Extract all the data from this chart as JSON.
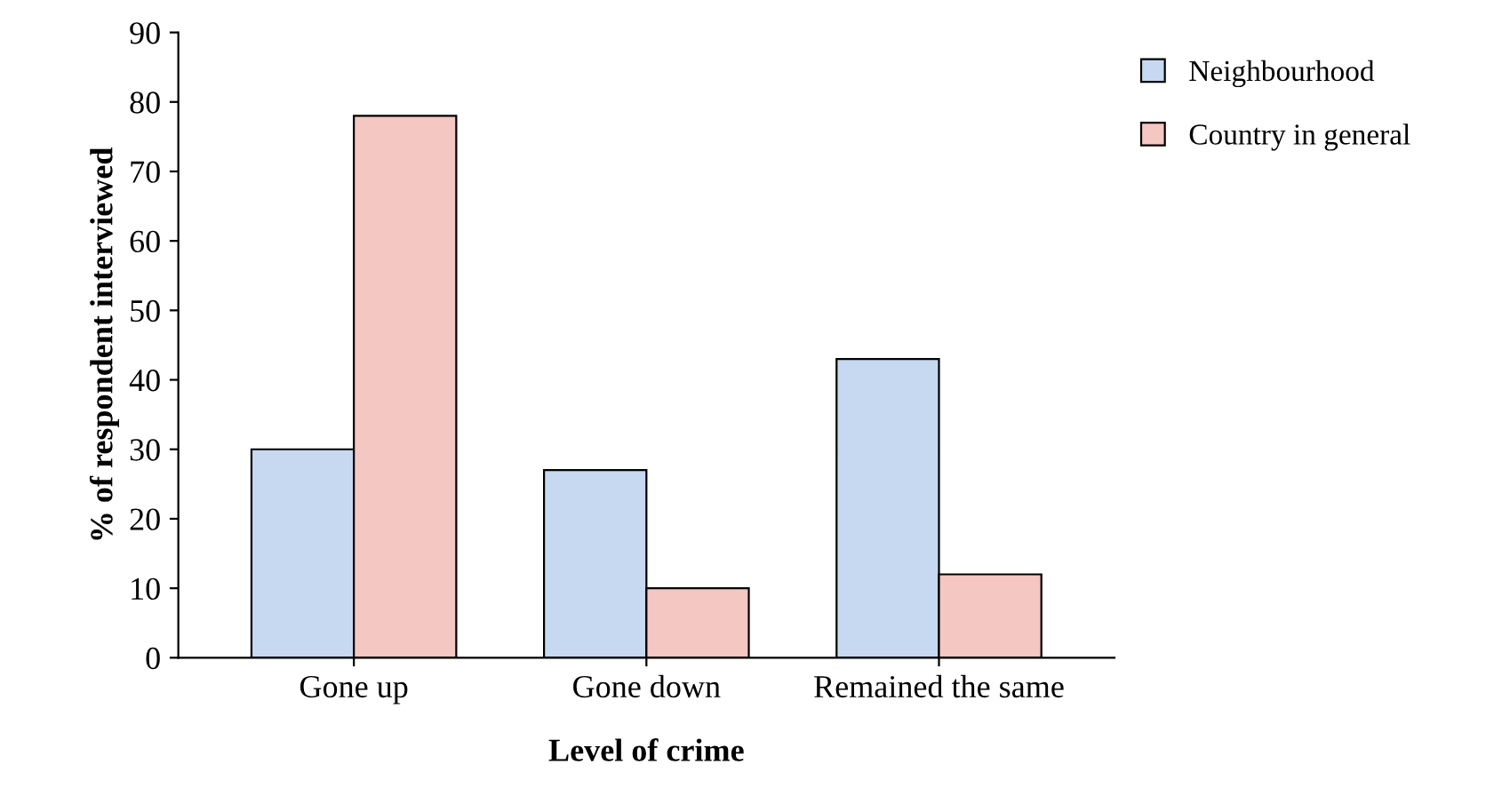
{
  "chart_data": {
    "type": "bar",
    "xlabel": "Level of crime",
    "ylabel": "% of respondent interviewed",
    "categories": [
      "Gone up",
      "Gone down",
      "Remained the same"
    ],
    "series": [
      {
        "name": "Neighbourhood",
        "color": "#c6d9f1",
        "values": [
          30,
          27,
          43
        ]
      },
      {
        "name": "Country in general",
        "color": "#f4c7c3",
        "values": [
          78,
          10,
          12
        ]
      }
    ],
    "ylim": [
      0,
      90
    ],
    "yticks": [
      0,
      10,
      20,
      30,
      40,
      50,
      60,
      70,
      80,
      90
    ],
    "grid": false,
    "legend": "top right"
  }
}
